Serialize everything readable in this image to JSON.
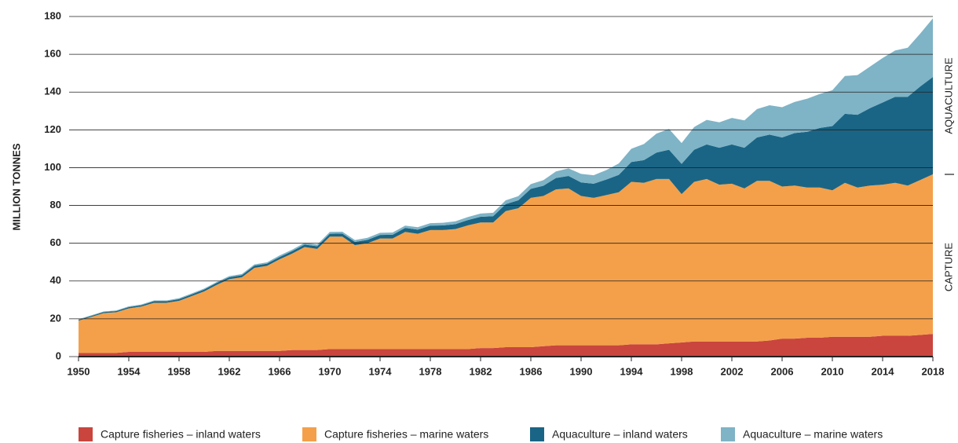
{
  "chart_data": {
    "type": "stacked_area",
    "y_label": "MILLION TONNES",
    "annotations": [
      "AQUACULTURE",
      "CAPTURE"
    ],
    "x": [
      1950,
      1951,
      1952,
      1953,
      1954,
      1955,
      1956,
      1957,
      1958,
      1959,
      1960,
      1961,
      1962,
      1963,
      1964,
      1965,
      1966,
      1967,
      1968,
      1969,
      1970,
      1971,
      1972,
      1973,
      1974,
      1975,
      1976,
      1977,
      1978,
      1979,
      1980,
      1981,
      1982,
      1983,
      1984,
      1985,
      1986,
      1987,
      1988,
      1989,
      1990,
      1991,
      1992,
      1993,
      1994,
      1995,
      1996,
      1997,
      1998,
      1999,
      2000,
      2001,
      2002,
      2003,
      2004,
      2005,
      2006,
      2007,
      2008,
      2009,
      2010,
      2011,
      2012,
      2013,
      2014,
      2015,
      2016,
      2017,
      2018
    ],
    "xlim": [
      1950,
      2018
    ],
    "xticks": [
      1950,
      1954,
      1958,
      1962,
      1966,
      1970,
      1974,
      1978,
      1982,
      1986,
      1990,
      1994,
      1998,
      2002,
      2006,
      2010,
      2014,
      2018
    ],
    "ylim": [
      0,
      180
    ],
    "yticks": [
      0,
      20,
      40,
      60,
      80,
      100,
      120,
      140,
      160,
      180
    ],
    "grid": true,
    "series": [
      {
        "name": "Capture fisheries – inland waters",
        "color": "#c9453e",
        "values": [
          2,
          2,
          2,
          2,
          2.5,
          2.5,
          2.5,
          2.5,
          2.5,
          2.5,
          2.5,
          3,
          3,
          3,
          3,
          3,
          3,
          3.5,
          3.5,
          3.5,
          4,
          4,
          4,
          4,
          4,
          4,
          4,
          4,
          4,
          4,
          4,
          4,
          4.5,
          4.5,
          5,
          5,
          5,
          5.5,
          6,
          6,
          6,
          6,
          6,
          6,
          6.5,
          6.5,
          6.5,
          7,
          7.5,
          8,
          8,
          8,
          8,
          8,
          8,
          8.5,
          9.5,
          9.5,
          10,
          10,
          10.5,
          10.5,
          10.5,
          10.5,
          11,
          11,
          11,
          11.5,
          12
        ]
      },
      {
        "name": "Capture fisheries – marine waters",
        "color": "#f4a04a",
        "values": [
          17,
          19,
          21,
          21.5,
          23,
          24,
          26,
          26,
          27,
          29.5,
          32,
          35,
          38,
          39,
          44,
          45,
          48.5,
          51,
          54.5,
          53.5,
          59.5,
          59.5,
          55,
          56,
          58.5,
          58.5,
          62,
          61,
          63,
          63,
          63.5,
          65.5,
          66.5,
          66.5,
          72,
          73.5,
          79,
          79.5,
          82.5,
          83,
          79,
          78,
          79.5,
          81,
          86,
          85.5,
          87.5,
          87,
          78.5,
          84.5,
          86,
          83,
          83.5,
          81,
          85,
          84.5,
          80.5,
          81,
          79.5,
          79.5,
          77.5,
          81.5,
          79,
          80,
          80,
          81,
          79.5,
          82,
          84.5
        ]
      },
      {
        "name": "Aquaculture – inland waters",
        "color": "#1a6585",
        "values": [
          0.5,
          0.5,
          0.6,
          0.6,
          0.7,
          0.7,
          0.8,
          0.8,
          0.9,
          0.9,
          1,
          1,
          1,
          1.1,
          1.1,
          1.2,
          1.2,
          1.3,
          1.3,
          1.4,
          1.5,
          1.6,
          1.7,
          1.8,
          1.9,
          2,
          2.1,
          2.2,
          2.3,
          2.4,
          2.6,
          2.8,
          3,
          3.3,
          3.7,
          4.2,
          4.8,
          5.4,
          6,
          6.6,
          7.2,
          7.5,
          8.2,
          9.2,
          10.5,
          12,
          14,
          15.5,
          16,
          17,
          18.3,
          19.5,
          20.8,
          21.5,
          23,
          24.5,
          26,
          27.8,
          29.5,
          31.5,
          34,
          36.5,
          38.5,
          41,
          43.5,
          45.5,
          47,
          49.5,
          51.5
        ]
      },
      {
        "name": "Aquaculture – marine waters",
        "color": "#7fb3c6",
        "values": [
          0.3,
          0.3,
          0.3,
          0.3,
          0.4,
          0.4,
          0.4,
          0.4,
          0.5,
          0.5,
          0.5,
          0.5,
          0.6,
          0.6,
          0.7,
          0.7,
          0.8,
          0.8,
          0.9,
          0.9,
          1,
          1,
          1,
          1.1,
          1.1,
          1.2,
          1.2,
          1.3,
          1.3,
          1.4,
          1.5,
          1.6,
          1.7,
          1.8,
          2,
          2.2,
          2.5,
          3,
          3.5,
          4,
          4.5,
          4.5,
          5,
          6,
          7,
          8.5,
          10,
          11,
          11,
          12,
          13,
          13.5,
          14,
          14.5,
          15,
          15.5,
          16,
          16.5,
          17.5,
          18,
          19,
          20,
          21,
          22,
          23.5,
          24.5,
          26,
          28,
          31
        ]
      }
    ]
  }
}
